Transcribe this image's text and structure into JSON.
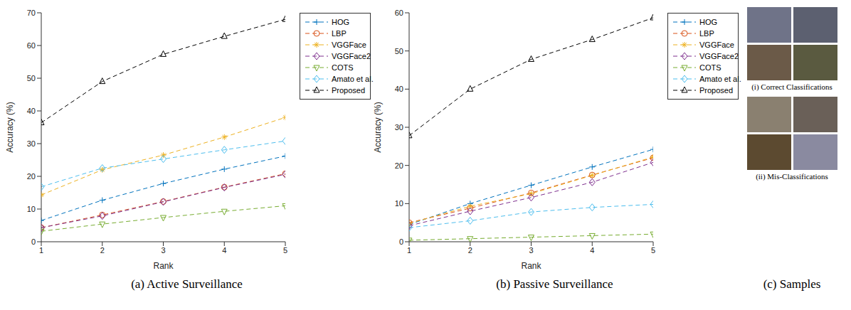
{
  "chart_data": [
    {
      "type": "line",
      "title": "(a) Active Surveillance",
      "x_label": "Rank",
      "y_label": "Accuracy (%)",
      "x": [
        1,
        2,
        3,
        4,
        5
      ],
      "xlim": [
        1,
        5
      ],
      "xticks": [
        1,
        2,
        3,
        4,
        5
      ],
      "ylim": [
        0,
        70
      ],
      "yticks": [
        0,
        10,
        20,
        30,
        40,
        50,
        60,
        70
      ],
      "grid": false,
      "legend": "right",
      "series": [
        {
          "name": "HOG",
          "color": "#0072BD",
          "marker": "plus",
          "line_style": "dashed",
          "values": [
            6.5,
            12.7,
            17.8,
            22.2,
            26.2
          ]
        },
        {
          "name": "LBP",
          "color": "#D95319",
          "marker": "circle",
          "line_style": "dashed",
          "values": [
            4.3,
            8.2,
            12.3,
            16.7,
            20.8
          ]
        },
        {
          "name": "VGGFace",
          "color": "#EDB120",
          "marker": "asterisk",
          "line_style": "dashed",
          "values": [
            14.3,
            22.0,
            26.5,
            32.0,
            38.0
          ]
        },
        {
          "name": "VGGFace2",
          "color": "#7E2F8E",
          "marker": "diamond",
          "line_style": "dashed",
          "values": [
            4.3,
            7.9,
            12.2,
            16.6,
            20.6
          ]
        },
        {
          "name": "COTS",
          "color": "#77AC30",
          "marker": "triangle_down",
          "line_style": "dashed",
          "values": [
            3.2,
            5.4,
            7.4,
            9.3,
            11.0
          ]
        },
        {
          "name": "Amato et al.",
          "color": "#4DBEEE",
          "marker": "diamond",
          "line_style": "dashed",
          "values": [
            16.8,
            22.5,
            25.3,
            28.1,
            30.8
          ]
        },
        {
          "name": "Proposed",
          "color": "#000000",
          "marker": "triangle",
          "line_style": "dashed",
          "values": [
            36.4,
            49.0,
            57.3,
            62.8,
            68.0
          ]
        }
      ]
    },
    {
      "type": "line",
      "title": "(b) Passive Surveillance",
      "x_label": "Rank",
      "y_label": "Accuracy (%)",
      "x": [
        1,
        2,
        3,
        4,
        5
      ],
      "xlim": [
        1,
        5
      ],
      "xticks": [
        1,
        2,
        3,
        4,
        5
      ],
      "ylim": [
        0,
        60
      ],
      "yticks": [
        0,
        10,
        20,
        30,
        40,
        50,
        60
      ],
      "grid": false,
      "legend": "right",
      "series": [
        {
          "name": "HOG",
          "color": "#0072BD",
          "marker": "plus",
          "line_style": "dashed",
          "values": [
            4.5,
            10.0,
            14.8,
            19.6,
            24.2
          ]
        },
        {
          "name": "LBP",
          "color": "#D95319",
          "marker": "circle",
          "line_style": "dashed",
          "values": [
            5.0,
            8.8,
            12.8,
            17.5,
            22.0
          ]
        },
        {
          "name": "VGGFace",
          "color": "#EDB120",
          "marker": "asterisk",
          "line_style": "dashed",
          "values": [
            4.8,
            9.3,
            12.6,
            17.4,
            22.2
          ]
        },
        {
          "name": "VGGFace2",
          "color": "#7E2F8E",
          "marker": "diamond",
          "line_style": "dashed",
          "values": [
            4.2,
            8.0,
            11.6,
            15.6,
            20.8
          ]
        },
        {
          "name": "COTS",
          "color": "#77AC30",
          "marker": "triangle_down",
          "line_style": "dashed",
          "values": [
            0.4,
            0.8,
            1.2,
            1.6,
            2.0
          ]
        },
        {
          "name": "Amato et al.",
          "color": "#4DBEEE",
          "marker": "diamond",
          "line_style": "dashed",
          "values": [
            3.7,
            5.5,
            7.8,
            9.0,
            9.8
          ]
        },
        {
          "name": "Proposed",
          "color": "#000000",
          "marker": "triangle",
          "line_style": "dashed",
          "values": [
            27.8,
            40.0,
            47.8,
            53.0,
            58.7
          ]
        }
      ]
    }
  ],
  "samples": {
    "groups": [
      "(i) Correct Classifications",
      "(ii) Mis-Classifications"
    ],
    "caption": "(c) Samples"
  }
}
